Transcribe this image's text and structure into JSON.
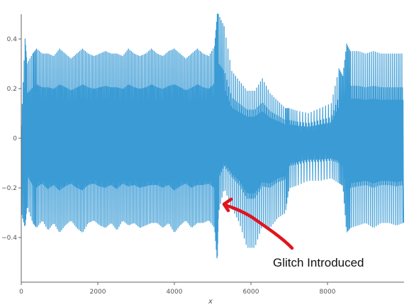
{
  "chart_data": {
    "type": "line",
    "title": "",
    "xlabel": "x",
    "ylabel": "",
    "xlim": [
      0,
      10000
    ],
    "ylim": [
      -0.58,
      0.5
    ],
    "x_ticks": [
      0,
      2000,
      4000,
      6000,
      8000
    ],
    "x_tick_labels": [
      "0",
      "2000",
      "4000",
      "6000",
      "8000"
    ],
    "y_ticks": [
      0.4,
      0.2,
      0,
      -0.2,
      -0.4
    ],
    "y_tick_labels": [
      "0.4",
      "0.2",
      "0",
      "−0.2",
      "−0.4"
    ],
    "grid": false,
    "legend": "none",
    "series": [
      {
        "color": "#3a9bd5",
        "x": [
          0,
          100,
          150,
          300,
          400,
          550,
          700,
          850,
          1000,
          1150,
          1300,
          1450,
          1600,
          1750,
          1900,
          2050,
          2200,
          2350,
          2500,
          2650,
          2800,
          2950,
          3100,
          3250,
          3400,
          3550,
          3700,
          3850,
          4000,
          4150,
          4300,
          4450,
          4600,
          4750,
          4900,
          5050,
          5120,
          5150,
          5300,
          5500,
          5700,
          5900,
          6100,
          6300,
          6500,
          6700,
          6900,
          7000,
          7200,
          7500,
          7800,
          8100,
          8300,
          8400,
          8500,
          8600,
          8800,
          9000,
          9200,
          9400,
          9600,
          9800,
          9990
        ],
        "y_upper": [
          0.05,
          0.4,
          0.3,
          0.34,
          0.36,
          0.34,
          0.34,
          0.33,
          0.36,
          0.34,
          0.32,
          0.34,
          0.36,
          0.34,
          0.33,
          0.34,
          0.35,
          0.34,
          0.34,
          0.33,
          0.36,
          0.34,
          0.33,
          0.34,
          0.36,
          0.34,
          0.33,
          0.35,
          0.36,
          0.34,
          0.32,
          0.34,
          0.36,
          0.34,
          0.33,
          0.37,
          0.5,
          0.5,
          0.45,
          0.27,
          0.23,
          0.19,
          0.19,
          0.24,
          0.18,
          0.15,
          0.12,
          0.12,
          0.11,
          0.1,
          0.12,
          0.14,
          0.28,
          0.25,
          0.38,
          0.35,
          0.35,
          0.34,
          0.35,
          0.34,
          0.34,
          0.34,
          0.34
        ],
        "y_lower": [
          -0.3,
          -0.36,
          -0.27,
          -0.34,
          -0.36,
          -0.33,
          -0.37,
          -0.34,
          -0.38,
          -0.35,
          -0.33,
          -0.36,
          -0.38,
          -0.34,
          -0.33,
          -0.35,
          -0.36,
          -0.34,
          -0.37,
          -0.33,
          -0.35,
          -0.34,
          -0.36,
          -0.35,
          -0.34,
          -0.34,
          -0.36,
          -0.34,
          -0.38,
          -0.35,
          -0.33,
          -0.36,
          -0.34,
          -0.34,
          -0.33,
          -0.36,
          -0.5,
          -0.3,
          -0.2,
          -0.28,
          -0.34,
          -0.44,
          -0.44,
          -0.35,
          -0.36,
          -0.32,
          -0.3,
          -0.2,
          -0.19,
          -0.17,
          -0.17,
          -0.16,
          -0.18,
          -0.19,
          -0.38,
          -0.36,
          -0.35,
          -0.34,
          -0.36,
          -0.34,
          -0.34,
          -0.35,
          -0.34
        ]
      }
    ]
  },
  "annotation": {
    "text": "Glitch Introduced",
    "arrow_color": "#e0141e"
  }
}
